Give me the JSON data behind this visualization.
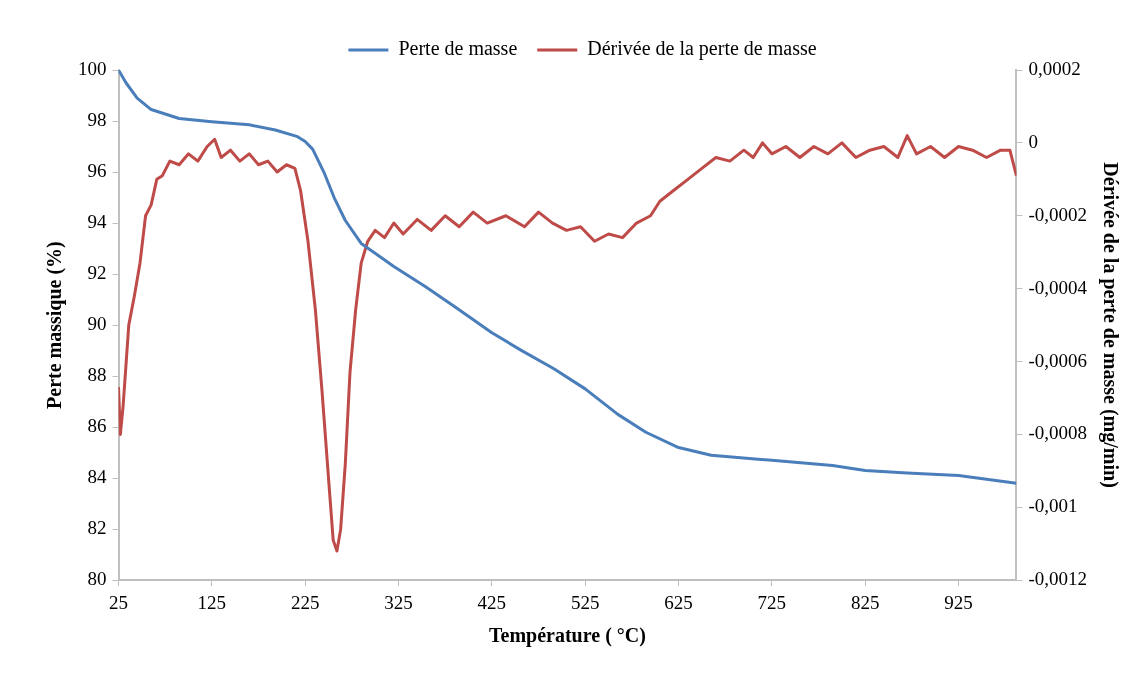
{
  "chart_data": {
    "type": "line",
    "xlabel": "Température ( °C)",
    "ylabel": "Perte massique (%)",
    "y2label": "Dérivée de la perte de masse (mg/min)",
    "xlim": [
      25,
      987
    ],
    "xticks": [
      25,
      125,
      225,
      325,
      425,
      525,
      625,
      725,
      825,
      925
    ],
    "ylim": [
      80,
      100
    ],
    "yticks": [
      80,
      82,
      84,
      86,
      88,
      90,
      92,
      94,
      96,
      98,
      100
    ],
    "y2lim": [
      -0.0012,
      0.0002
    ],
    "y2ticks": [
      {
        "value": -0.0012,
        "label": "-0,0012"
      },
      {
        "value": -0.001,
        "label": "-0,001"
      },
      {
        "value": -0.0008,
        "label": "-0,0008"
      },
      {
        "value": -0.0006,
        "label": "-0,0006"
      },
      {
        "value": -0.0004,
        "label": "-0,0004"
      },
      {
        "value": -0.0002,
        "label": "-0,0002"
      },
      {
        "value": 0,
        "label": "0"
      },
      {
        "value": 0.0002,
        "label": "0,0002"
      }
    ],
    "grid": false,
    "legend": "top",
    "marker": "none",
    "line_style": "solid",
    "series": [
      {
        "name": "Perte de masse",
        "color": "#4a7ebb",
        "x": [
          25,
          33,
          45,
          60,
          90,
          125,
          165,
          193,
          216,
          225,
          233,
          245,
          256,
          268,
          285,
          320,
          354,
          388,
          425,
          457,
          491,
          525,
          560,
          590,
          625,
          660,
          725,
          790,
          825,
          870,
          925,
          987
        ],
        "values": [
          100,
          99.5,
          98.9,
          98.45,
          98.1,
          97.97,
          97.85,
          97.65,
          97.4,
          97.2,
          96.9,
          96.0,
          95.0,
          94.1,
          93.2,
          92.3,
          91.5,
          90.65,
          89.7,
          89.0,
          88.3,
          87.5,
          86.5,
          85.8,
          85.2,
          84.9,
          84.7,
          84.5,
          84.3,
          84.2,
          84.1,
          83.8
        ]
      },
      {
        "name": "Dérivée de la perte de masse",
        "color": "#be4b48",
        "axis": "y2",
        "x": [
          25,
          27,
          30,
          36,
          42,
          48,
          54,
          60,
          66,
          72,
          80,
          90,
          100,
          110,
          120,
          128,
          135,
          145,
          155,
          165,
          175,
          185,
          195,
          205,
          214,
          220,
          228,
          236,
          243,
          250,
          255,
          259,
          263,
          268,
          273,
          279,
          285,
          292,
          300,
          310,
          320,
          330,
          345,
          360,
          375,
          390,
          405,
          420,
          440,
          460,
          475,
          490,
          505,
          520,
          535,
          550,
          565,
          580,
          595,
          605,
          620,
          635,
          650,
          665,
          680,
          695,
          705,
          715,
          725,
          740,
          755,
          770,
          785,
          800,
          815,
          830,
          845,
          860,
          870,
          880,
          895,
          910,
          925,
          940,
          955,
          970,
          980,
          987
        ],
        "values": [
          -0.00067,
          -0.0008,
          -0.00072,
          -0.0005,
          -0.00042,
          -0.00033,
          -0.0002,
          -0.00017,
          -0.0001,
          -9e-05,
          -5e-05,
          -6e-05,
          -3e-05,
          -5e-05,
          -1e-05,
          1e-05,
          -4e-05,
          -2e-05,
          -5e-05,
          -3e-05,
          -6e-05,
          -5e-05,
          -8e-05,
          -6e-05,
          -7e-05,
          -0.00013,
          -0.00027,
          -0.00046,
          -0.00068,
          -0.00092,
          -0.00109,
          -0.00112,
          -0.00106,
          -0.00088,
          -0.00063,
          -0.00046,
          -0.00033,
          -0.00027,
          -0.00024,
          -0.00026,
          -0.00022,
          -0.00025,
          -0.00021,
          -0.00024,
          -0.0002,
          -0.00023,
          -0.00019,
          -0.00022,
          -0.0002,
          -0.00023,
          -0.00019,
          -0.00022,
          -0.00024,
          -0.00023,
          -0.00027,
          -0.00025,
          -0.00026,
          -0.00022,
          -0.0002,
          -0.00016,
          -0.00013,
          -0.0001,
          -7e-05,
          -4e-05,
          -5e-05,
          -2e-05,
          -4e-05,
          0,
          -3e-05,
          -1e-05,
          -4e-05,
          -1e-05,
          -3e-05,
          0,
          -4e-05,
          -2e-05,
          -1e-05,
          -4e-05,
          2e-05,
          -3e-05,
          -1e-05,
          -4e-05,
          -1e-05,
          -2e-05,
          -4e-05,
          -2e-05,
          -2e-05,
          -9e-05
        ]
      }
    ]
  }
}
